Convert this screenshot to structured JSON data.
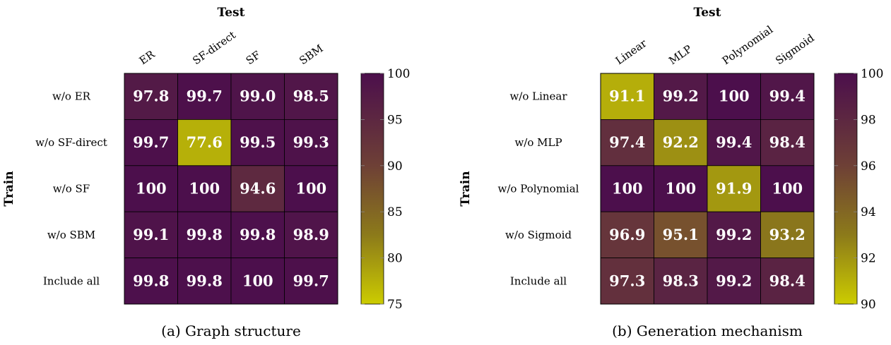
{
  "chart_data": [
    {
      "type": "heatmap",
      "title": "",
      "caption": "(a) Graph structure",
      "xlabel": "Test",
      "ylabel": "Train",
      "columns": [
        "ER",
        "SF-direct",
        "SF",
        "SBM"
      ],
      "rows": [
        "w/o ER",
        "w/o SF-direct",
        "w/o SF",
        "w/o SBM",
        "Include all"
      ],
      "values": [
        [
          97.8,
          99.7,
          99.0,
          98.5
        ],
        [
          99.7,
          77.6,
          99.5,
          99.3
        ],
        [
          100,
          100,
          94.6,
          100
        ],
        [
          99.1,
          99.8,
          99.8,
          98.9
        ],
        [
          99.8,
          99.8,
          100,
          99.7
        ]
      ],
      "labels": [
        [
          "97.8",
          "99.7",
          "99.0",
          "98.5"
        ],
        [
          "99.7",
          "77.6",
          "99.5",
          "99.3"
        ],
        [
          "100",
          "100",
          "94.6",
          "100"
        ],
        [
          "99.1",
          "99.8",
          "99.8",
          "98.9"
        ],
        [
          "99.8",
          "99.8",
          "100",
          "99.7"
        ]
      ],
      "colorbar": {
        "min": 75,
        "max": 100,
        "ticks": [
          "75",
          "80",
          "85",
          "90",
          "95",
          "100"
        ]
      },
      "colormap": [
        "#cccc00",
        "#4c0f4c"
      ]
    },
    {
      "type": "heatmap",
      "title": "",
      "caption": "(b) Generation mechanism",
      "xlabel": "Test",
      "ylabel": "Train",
      "columns": [
        "Linear",
        "MLP",
        "Polynomial",
        "Sigmoid"
      ],
      "rows": [
        "w/o Linear",
        "w/o MLP",
        "w/o Polynomial",
        "w/o Sigmoid",
        "Include all"
      ],
      "values": [
        [
          91.1,
          99.2,
          100,
          99.4
        ],
        [
          97.4,
          92.2,
          99.4,
          98.4
        ],
        [
          100,
          100,
          91.9,
          100
        ],
        [
          96.9,
          95.1,
          99.2,
          93.2
        ],
        [
          97.3,
          98.3,
          99.2,
          98.4
        ]
      ],
      "labels": [
        [
          "91.1",
          "99.2",
          "100",
          "99.4"
        ],
        [
          "97.4",
          "92.2",
          "99.4",
          "98.4"
        ],
        [
          "100",
          "100",
          "91.9",
          "100"
        ],
        [
          "96.9",
          "95.1",
          "99.2",
          "93.2"
        ],
        [
          "97.3",
          "98.3",
          "99.2",
          "98.4"
        ]
      ],
      "colorbar": {
        "min": 90,
        "max": 100,
        "ticks": [
          "90",
          "92",
          "94",
          "96",
          "98",
          "100"
        ]
      },
      "colormap": [
        "#cccc00",
        "#4c0f4c"
      ]
    }
  ]
}
